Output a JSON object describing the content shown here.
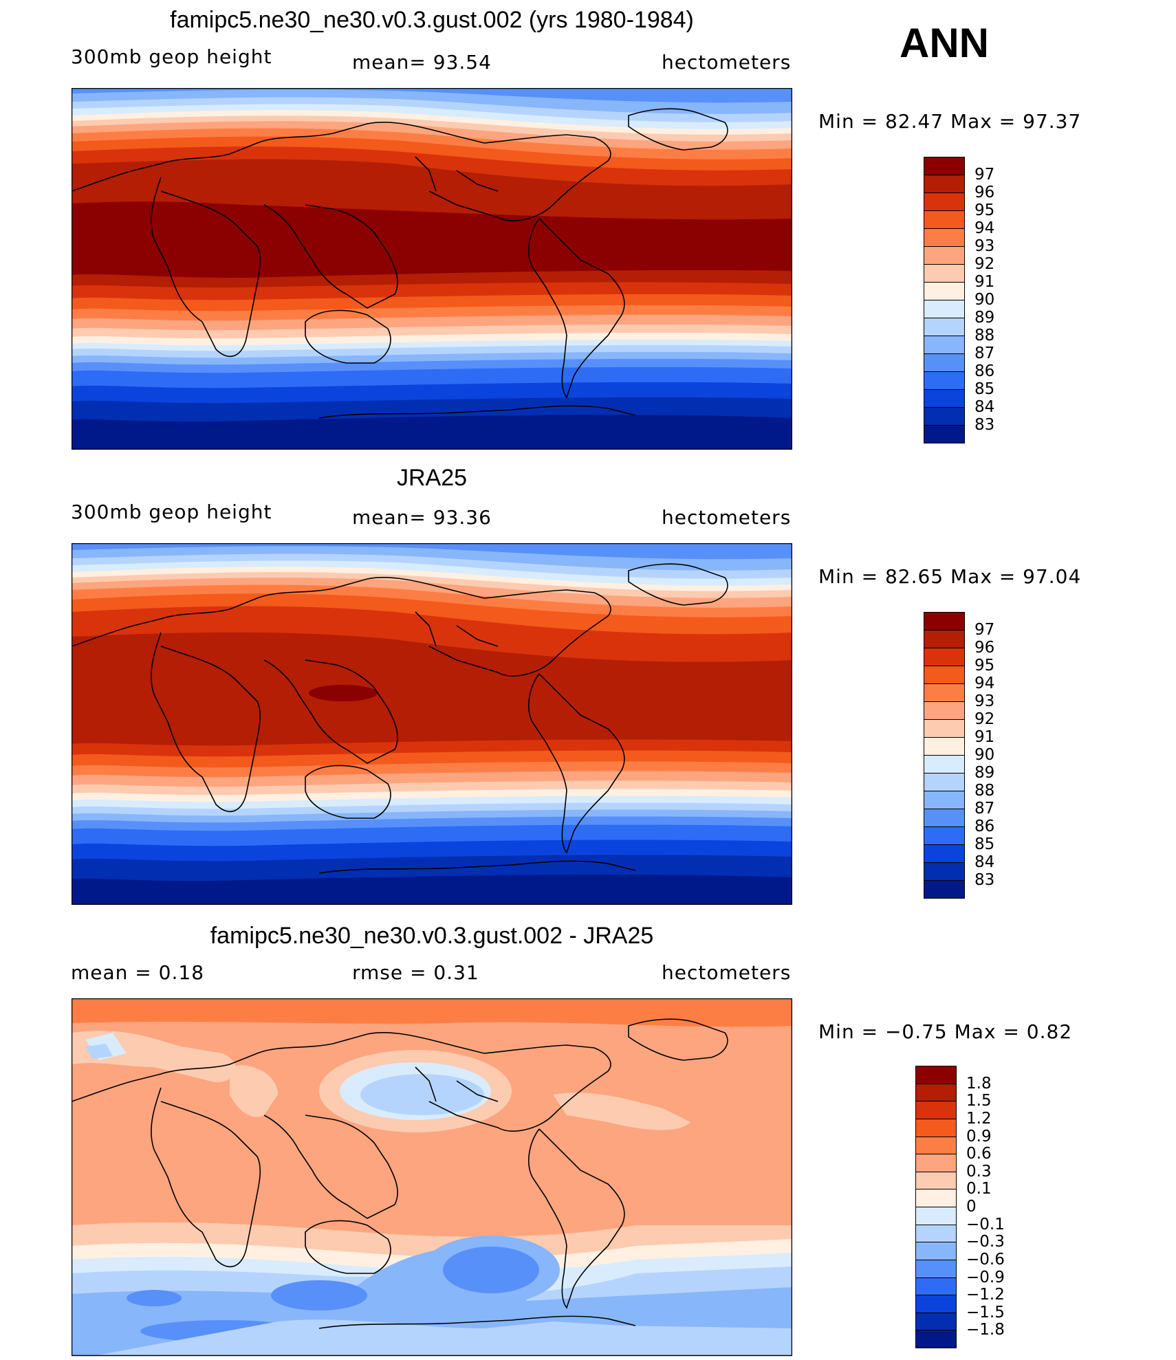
{
  "season": "ANN",
  "panels": [
    {
      "title": "famipc5.ne30_ne30.v0.3.gust.002 (yrs 1980-1984)",
      "left_label": "300mb geop height",
      "center_label": "mean=   93.54",
      "right_label": "hectometers",
      "minmax": "Min =   82.47 Max =   97.37",
      "colorbar": {
        "labels": [
          "97",
          "96",
          "95",
          "94",
          "93",
          "92",
          "91",
          "90",
          "89",
          "88",
          "87",
          "86",
          "85",
          "84",
          "83"
        ],
        "colors": [
          "#8b0000",
          "#b31e05",
          "#d9330c",
          "#f45a1b",
          "#fd7e45",
          "#fca57f",
          "#fdcbb0",
          "#fff0e2",
          "#d8ecfd",
          "#b5d4fd",
          "#88b6fb",
          "#5890fa",
          "#2e6cf5",
          "#0a44dd",
          "#022eb2",
          "#00198a"
        ]
      }
    },
    {
      "title": "JRA25",
      "left_label": "300mb geop height",
      "center_label": "mean=   93.36",
      "right_label": "hectometers",
      "minmax": "Min =   82.65 Max =   97.04",
      "colorbar": {
        "labels": [
          "97",
          "96",
          "95",
          "94",
          "93",
          "92",
          "91",
          "90",
          "89",
          "88",
          "87",
          "86",
          "85",
          "84",
          "83"
        ],
        "colors": [
          "#8b0000",
          "#b31e05",
          "#d9330c",
          "#f45a1b",
          "#fd7e45",
          "#fca57f",
          "#fdcbb0",
          "#fff0e2",
          "#d8ecfd",
          "#b5d4fd",
          "#88b6fb",
          "#5890fa",
          "#2e6cf5",
          "#0a44dd",
          "#022eb2",
          "#00198a"
        ]
      }
    },
    {
      "title": "famipc5.ne30_ne30.v0.3.gust.002 - JRA25",
      "left_label": "mean =    0.18",
      "center_label": "rmse =    0.31",
      "right_label": "hectometers",
      "minmax": "Min =  −0.75 Max =    0.82",
      "colorbar": {
        "labels": [
          "1.8",
          "1.5",
          "1.2",
          "0.9",
          "0.6",
          "0.3",
          "0.1",
          "0",
          "−0.1",
          "−0.3",
          "−0.6",
          "−0.9",
          "−1.2",
          "−1.5",
          "−1.8"
        ],
        "colors": [
          "#8b0000",
          "#b31e05",
          "#d9330c",
          "#f45a1b",
          "#fd7e45",
          "#fca57f",
          "#fdcbb0",
          "#fff0e2",
          "#d8ecfd",
          "#b5d4fd",
          "#88b6fb",
          "#5890fa",
          "#2e6cf5",
          "#0a44dd",
          "#022eb2",
          "#00198a"
        ]
      }
    }
  ]
}
